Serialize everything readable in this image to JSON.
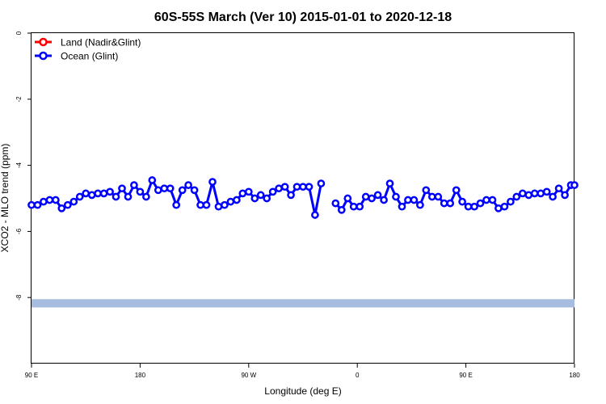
{
  "chart_data": {
    "type": "line",
    "title": "60S-55S March (Ver 10)   2015-01-01 to 2020-12-18",
    "xlabel": "Longitude (deg E)",
    "ylabel": "XCO2 - MLO trend (ppm)",
    "xlim": [
      90,
      450
    ],
    "ylim": [
      -10,
      0
    ],
    "x_ticks": [
      {
        "value": 90,
        "label": "90 E"
      },
      {
        "value": 180,
        "label": "180"
      },
      {
        "value": 270,
        "label": "90 W"
      },
      {
        "value": 360,
        "label": "0"
      },
      {
        "value": 450,
        "label": "90 E"
      },
      {
        "value": 540,
        "label": "180"
      }
    ],
    "y_ticks": [
      {
        "value": 0,
        "label": "0"
      },
      {
        "value": -2,
        "label": "-2"
      },
      {
        "value": -4,
        "label": "-4"
      },
      {
        "value": -6,
        "label": "-6"
      },
      {
        "value": -8,
        "label": "-8"
      }
    ],
    "series": [
      {
        "name": "Land (Nadir&Glint)",
        "color": "#ff0000",
        "x": [],
        "y": []
      },
      {
        "name": "Ocean (Glint)",
        "color": "#0000ff",
        "segments": [
          {
            "x": [
              90,
              95,
              100,
              105,
              110,
              115,
              120,
              125,
              130,
              135,
              140,
              145,
              150,
              155,
              160,
              165,
              170,
              175,
              180,
              185,
              190,
              195,
              200,
              205,
              210,
              215,
              220,
              225,
              230,
              235,
              240,
              245,
              250,
              255,
              260,
              265,
              270,
              275,
              280,
              285,
              290,
              295,
              300,
              305,
              310,
              315,
              320,
              325,
              330,
              335
            ],
            "y": [
              -5.2,
              -5.2,
              -5.1,
              -5.05,
              -5.05,
              -5.3,
              -5.2,
              -5.1,
              -4.95,
              -4.85,
              -4.9,
              -4.85,
              -4.85,
              -4.8,
              -4.95,
              -4.7,
              -4.95,
              -4.6,
              -4.8,
              -4.95,
              -4.45,
              -4.75,
              -4.7,
              -4.7,
              -5.2,
              -4.75,
              -4.6,
              -4.75,
              -5.2,
              -5.2,
              -4.5,
              -5.25,
              -5.2,
              -5.1,
              -5.05,
              -4.85,
              -4.8,
              -5.0,
              -4.9,
              -5.0,
              -4.8,
              -4.7,
              -4.65,
              -4.9,
              -4.65,
              -4.65,
              -4.65,
              -5.5,
              -4.55,
              null
            ]
          },
          {
            "x": [
              342,
              347,
              352,
              357,
              362,
              367,
              372,
              377,
              382,
              387,
              392,
              397,
              402,
              407,
              412,
              417,
              422,
              427,
              432,
              437,
              442,
              447,
              452,
              457,
              462,
              467,
              472,
              477,
              482,
              487,
              492,
              497,
              502,
              507,
              512,
              517,
              522,
              527,
              532,
              537,
              540
            ],
            "y": [
              -5.15,
              -5.35,
              -5.0,
              -5.25,
              -5.25,
              -4.95,
              -5.0,
              -4.9,
              -5.05,
              -4.55,
              -4.95,
              -5.25,
              -5.05,
              -5.05,
              -5.2,
              -4.75,
              -4.95,
              -4.95,
              -5.15,
              -5.15,
              -4.75,
              -5.1,
              -5.25,
              -5.25,
              -5.15,
              -5.05,
              -5.05,
              -5.3,
              -5.25,
              -5.1,
              -4.95,
              -4.85,
              -4.9,
              -4.85,
              -4.85,
              -4.8,
              -4.95,
              -4.7,
              -4.9,
              -4.6,
              -4.6
            ]
          }
        ]
      }
    ],
    "band": {
      "y_from": -8.3,
      "y_to": -8.05,
      "color": "#a6bddf"
    },
    "legend_position": "top-left",
    "grid": false
  }
}
